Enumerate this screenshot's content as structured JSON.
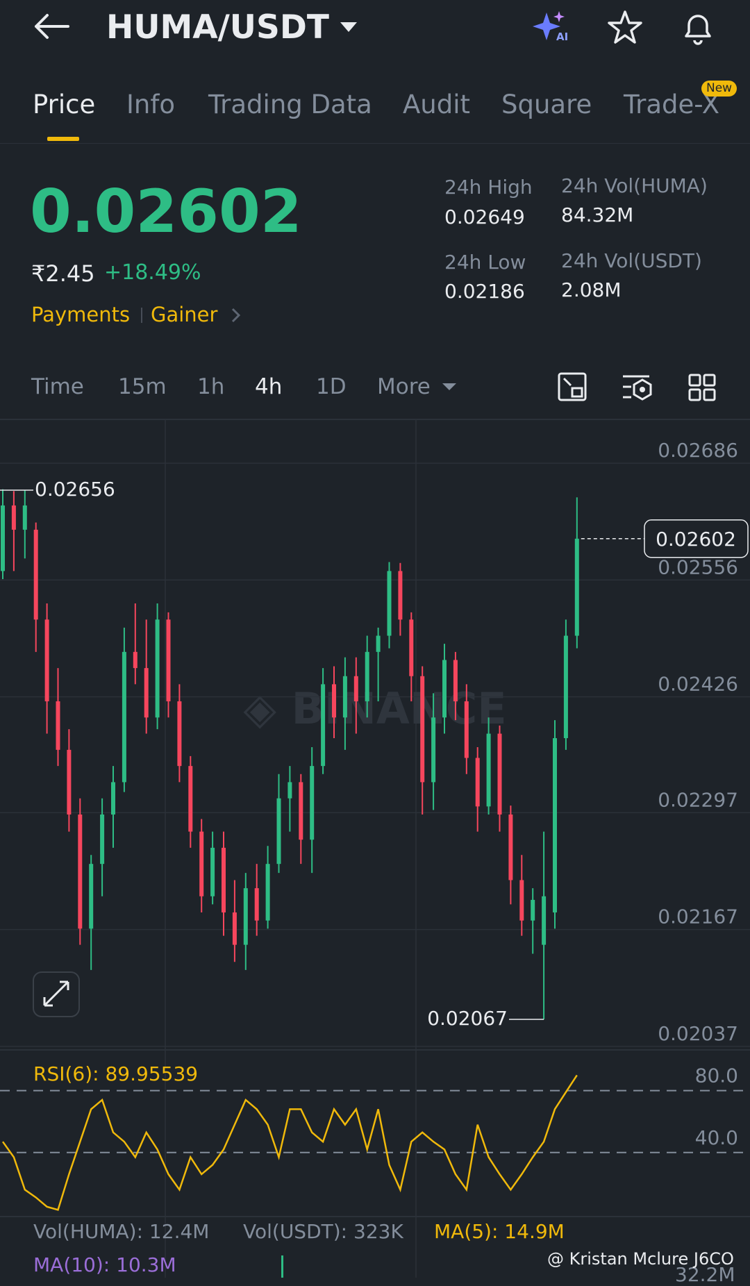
{
  "header": {
    "pair": "HUMA/USDT"
  },
  "tabs": [
    "Price",
    "Info",
    "Trading Data",
    "Audit",
    "Square",
    "Trade-X"
  ],
  "new_badge": "New",
  "price": {
    "last": "0.02602",
    "local": "₹2.45",
    "change": "+18.49%",
    "tags": [
      "Payments",
      "Gainer"
    ]
  },
  "stats": [
    {
      "label": "24h High",
      "value": "0.02649"
    },
    {
      "label": "24h Vol(HUMA)",
      "value": "84.32M"
    },
    {
      "label": "24h Low",
      "value": "0.02186"
    },
    {
      "label": "24h Vol(USDT)",
      "value": "2.08M"
    }
  ],
  "intervals": [
    "Time",
    "15m",
    "1h",
    "4h",
    "1D",
    "More"
  ],
  "chart_data": [
    {
      "type": "candlestick",
      "up_color": "#2ebd85",
      "down_color": "#f6465d",
      "open": [
        0.02566,
        0.02639,
        0.02612,
        0.02612,
        0.02512,
        0.02421,
        0.02367,
        0.02295,
        0.02168,
        0.0224,
        0.02295,
        0.02331,
        0.02476,
        0.02458,
        0.02403,
        0.02512,
        0.02421,
        0.02349,
        0.02276,
        0.02204,
        0.02258,
        0.02186,
        0.0215,
        0.02213,
        0.02177,
        0.0224,
        0.02313,
        0.02331,
        0.02267,
        0.02349,
        0.0244,
        0.02403,
        0.02449,
        0.02421,
        0.02476,
        0.02494,
        0.02566,
        0.02512,
        0.02449,
        0.02331,
        0.02403,
        0.02467,
        0.02421,
        0.02358,
        0.02304,
        0.02385,
        0.02295,
        0.02222,
        0.02177,
        0.0215,
        0.02186,
        0.0238,
        0.02494
      ],
      "high": [
        0.02657,
        0.02655,
        0.02656,
        0.0262,
        0.0253,
        0.02458,
        0.0239,
        0.02313,
        0.0225,
        0.02313,
        0.02349,
        0.02503,
        0.0253,
        0.02512,
        0.0253,
        0.0252,
        0.0244,
        0.0236,
        0.0229,
        0.02276,
        0.02276,
        0.02222,
        0.0223,
        0.0224,
        0.0226,
        0.0234,
        0.02349,
        0.0234,
        0.0237,
        0.02458,
        0.0246,
        0.0247,
        0.0247,
        0.02494,
        0.02503,
        0.02576,
        0.02575,
        0.0252,
        0.0246,
        0.0243,
        0.02485,
        0.02476,
        0.0244,
        0.0237,
        0.02403,
        0.02394,
        0.02305,
        0.0225,
        0.02213,
        0.02276,
        0.024,
        0.02512,
        0.02648
      ],
      "low": [
        0.02557,
        0.02566,
        0.0258,
        0.02476,
        0.02385,
        0.02349,
        0.02276,
        0.0215,
        0.02122,
        0.02204,
        0.02258,
        0.0232,
        0.0244,
        0.02385,
        0.0239,
        0.02403,
        0.02331,
        0.02258,
        0.02186,
        0.02195,
        0.0216,
        0.02131,
        0.02122,
        0.0216,
        0.02168,
        0.0223,
        0.02276,
        0.0224,
        0.0223,
        0.0234,
        0.0238,
        0.02367,
        0.02385,
        0.02403,
        0.02421,
        0.0248,
        0.02494,
        0.02421,
        0.02295,
        0.023,
        0.02385,
        0.024,
        0.0234,
        0.02276,
        0.02295,
        0.02276,
        0.02195,
        0.0216,
        0.0214,
        0.02067,
        0.02168,
        0.02367,
        0.0248
      ],
      "close": [
        0.02639,
        0.02612,
        0.02639,
        0.02512,
        0.02421,
        0.02367,
        0.02295,
        0.02168,
        0.0224,
        0.02295,
        0.02331,
        0.02476,
        0.02458,
        0.02403,
        0.02512,
        0.02421,
        0.02349,
        0.02276,
        0.02204,
        0.02258,
        0.02186,
        0.0215,
        0.02213,
        0.02177,
        0.0224,
        0.02313,
        0.02331,
        0.02267,
        0.02349,
        0.0244,
        0.02403,
        0.02449,
        0.02421,
        0.02476,
        0.02494,
        0.02566,
        0.02512,
        0.02449,
        0.02331,
        0.02403,
        0.02467,
        0.02421,
        0.02358,
        0.02304,
        0.02385,
        0.02295,
        0.02222,
        0.02177,
        0.022,
        0.02204,
        0.0238,
        0.02494,
        0.02602
      ],
      "ylim": [
        0.02033,
        0.02734
      ],
      "yticks": [
        0.02686,
        0.02556,
        0.02426,
        0.02297,
        0.02167,
        0.02037
      ],
      "last_price": 0.02602,
      "max_label": 0.02656,
      "min_label": 0.02067
    },
    {
      "type": "line",
      "title": "RSI(6): 89.95539",
      "color": "#f0b90b",
      "values": [
        47,
        37,
        16,
        11,
        5,
        3,
        26,
        47,
        68,
        74,
        53,
        47,
        37,
        53,
        42,
        26,
        16,
        37,
        26,
        32,
        42,
        58,
        74,
        68,
        58,
        37,
        68,
        68,
        53,
        47,
        68,
        58,
        68,
        42,
        68,
        32,
        16,
        47,
        53,
        47,
        42,
        26,
        16,
        58,
        37,
        26,
        16,
        26,
        37,
        47,
        68,
        79,
        89.95539
      ],
      "ylim": [
        0,
        100
      ],
      "yticks": [
        {
          "value": 80,
          "label": "80.0"
        },
        {
          "value": 40,
          "label": "40.0"
        }
      ]
    }
  ],
  "volume": {
    "labels": [
      "Vol(HUMA): 12.4M",
      "Vol(USDT): 323K",
      "MA(5): 14.9M",
      "MA(10): 10.3M"
    ],
    "axis_label": "32.2M"
  },
  "watermark": "@ Kristan Mclure J6CO"
}
